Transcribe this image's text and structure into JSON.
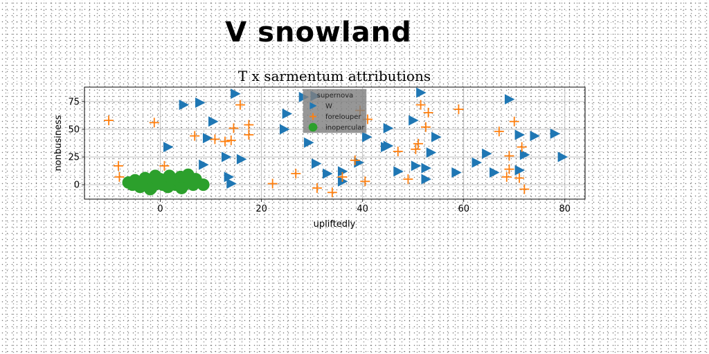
{
  "suptitle": "V snowland",
  "chart_data": {
    "type": "scatter",
    "title": "T x sarmentum attributions",
    "xlabel": "upliftedly",
    "ylabel": "nonbusiness",
    "xlim": [
      -15,
      84
    ],
    "ylim": [
      -13,
      88
    ],
    "xticks": [
      0,
      20,
      40,
      60,
      80
    ],
    "yticks": [
      0,
      25,
      50,
      75
    ],
    "grid": true,
    "legend": {
      "title": "supernova",
      "placement": "top-center"
    },
    "series": [
      {
        "name": "W",
        "marker": "triangle-right",
        "color": "#1f77b4",
        "x": [
          14.8,
          7.8,
          4.6,
          28.3,
          30.6,
          25.0,
          24.5,
          29.3,
          10.4,
          9.3,
          1.5,
          13.0,
          16.0,
          13.5,
          14.0,
          8.5,
          30.8,
          33.0,
          36.0,
          36.0,
          39.2,
          40.8,
          45.0,
          45.0,
          44.5,
          47.0,
          50.0,
          51.5,
          50.5,
          52.5,
          52.5,
          53.5,
          54.5,
          58.5,
          62.5,
          64.5,
          66.0,
          69.0,
          71.0,
          71.0,
          72.0,
          74.0,
          78.0,
          79.5
        ],
        "y": [
          82,
          74,
          72,
          79,
          80,
          64,
          50,
          38,
          57,
          42,
          34,
          25,
          23,
          7,
          1,
          18,
          19,
          10,
          12,
          3,
          20,
          43,
          51,
          35,
          34,
          12,
          58,
          83,
          17,
          15,
          5,
          29,
          43,
          11,
          20,
          28,
          11,
          77,
          13,
          45,
          27,
          44,
          46,
          25
        ]
      },
      {
        "name": "forelouper",
        "marker": "plus",
        "color": "#ff7f0e",
        "x": [
          -10.2,
          -8.3,
          -8.1,
          -1.2,
          0.8,
          6.8,
          10.8,
          12.8,
          14.0,
          14.5,
          15.8,
          17.5,
          17.5,
          22.2,
          26.8,
          31.0,
          34.0,
          36.0,
          38.5,
          39.5,
          40.5,
          41.0,
          47.0,
          49.0,
          50.5,
          51.0,
          51.5,
          52.5,
          53.0,
          59.0,
          67.0,
          68.5,
          69.0,
          69.0,
          70.0,
          71.0,
          71.5,
          72.0
        ],
        "y": [
          58,
          17,
          7,
          56,
          17,
          44,
          41,
          39,
          40,
          51,
          72,
          54,
          45,
          1,
          10,
          -3,
          -7,
          7,
          22,
          67,
          3,
          59,
          30,
          5,
          32,
          37,
          72,
          52,
          65,
          68,
          48,
          7,
          14,
          26,
          57,
          6,
          34,
          -4
        ]
      },
      {
        "name": "inopercular",
        "marker": "circle",
        "color": "#2ca02c",
        "x": [
          -6.3,
          -5.5,
          -5.0,
          -4.5,
          -4.0,
          -3.5,
          -3.0,
          -2.6,
          -2.2,
          -1.8,
          -1.5,
          -1.0,
          -0.6,
          0.0,
          0.5,
          1.0,
          1.5,
          2.0,
          2.5,
          3.0,
          3.5,
          4.0,
          4.5,
          5.0,
          5.5,
          6.0,
          6.5,
          7.0,
          8.5,
          -2.0,
          1.8,
          4.2
        ],
        "y": [
          2,
          0,
          4,
          1,
          -2,
          3,
          6,
          0,
          4,
          -3,
          2,
          8,
          1,
          5,
          0,
          3,
          -2,
          6,
          2,
          0,
          4,
          7,
          -1,
          2,
          9,
          3,
          0,
          5,
          0,
          -4,
          8,
          -3
        ]
      }
    ]
  }
}
